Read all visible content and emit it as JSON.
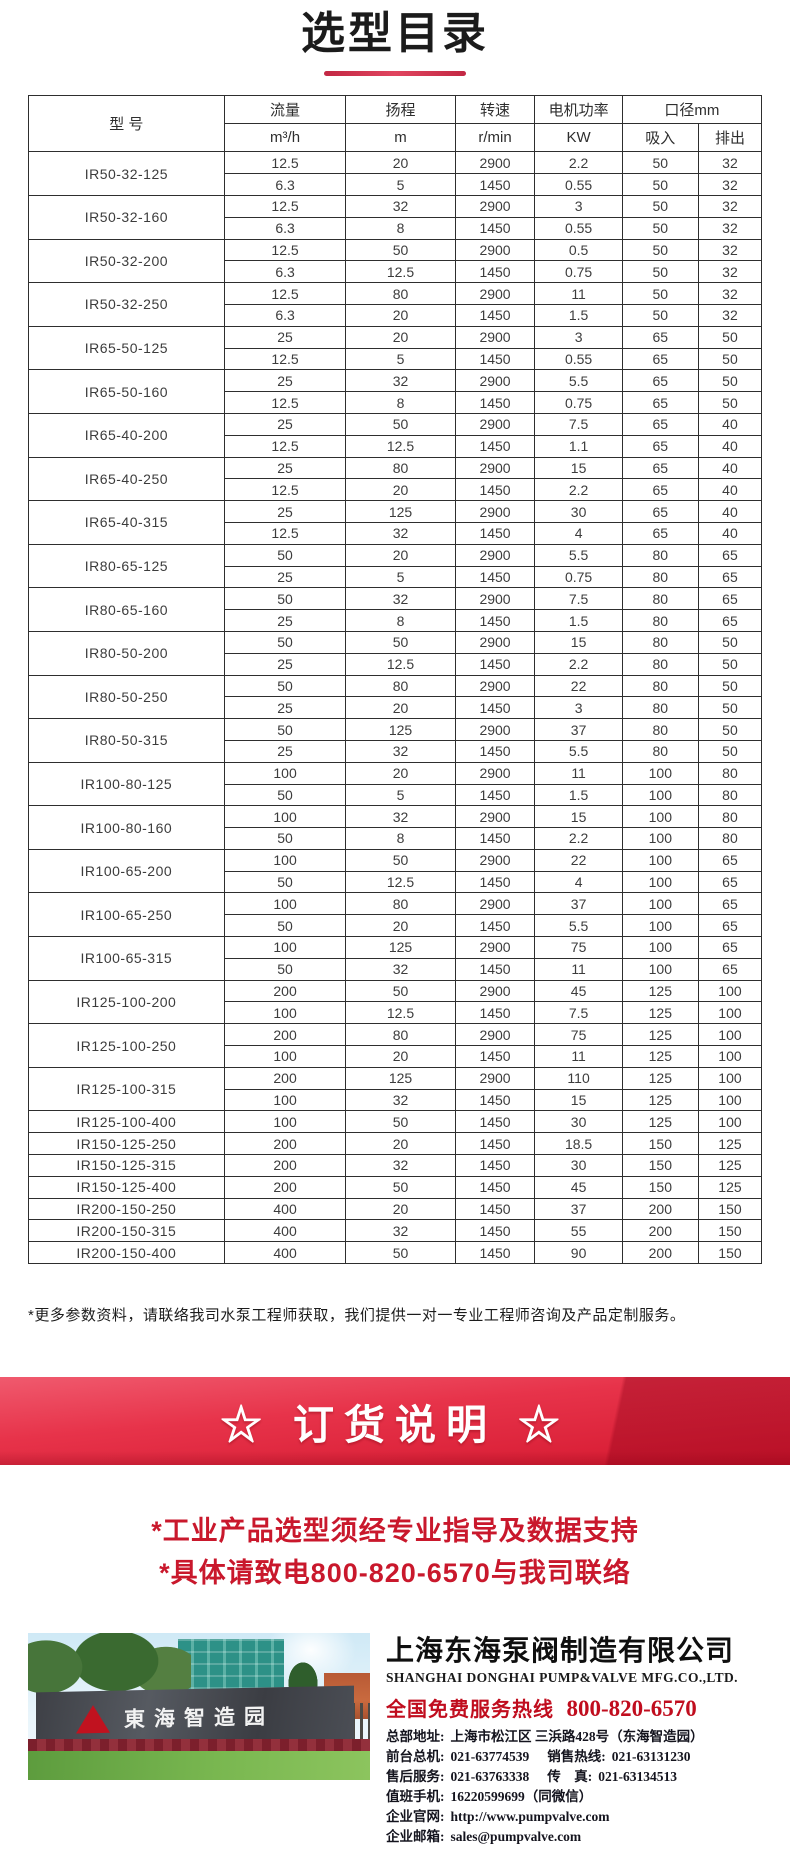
{
  "page_title": "选型目录",
  "colors": {
    "accent_red": "#d51930",
    "underline_red": "#d3304c",
    "notice_red": "#c9182c",
    "hotline_red": "#c00d1e"
  },
  "table": {
    "headers": {
      "model": "型 号",
      "flow": "流量",
      "flow_unit": "m³/h",
      "head": "扬程",
      "head_unit": "m",
      "speed": "转速",
      "speed_unit": "r/min",
      "power": "电机功率",
      "power_unit": "KW",
      "diameter": "口径mm",
      "suction": "吸入",
      "discharge": "排出"
    },
    "models": [
      {
        "model": "IR50-32-125",
        "rows": [
          [
            "12.5",
            "20",
            "2900",
            "2.2",
            "50",
            "32"
          ],
          [
            "6.3",
            "5",
            "1450",
            "0.55",
            "50",
            "32"
          ]
        ]
      },
      {
        "model": "IR50-32-160",
        "rows": [
          [
            "12.5",
            "32",
            "2900",
            "3",
            "50",
            "32"
          ],
          [
            "6.3",
            "8",
            "1450",
            "0.55",
            "50",
            "32"
          ]
        ]
      },
      {
        "model": "IR50-32-200",
        "rows": [
          [
            "12.5",
            "50",
            "2900",
            "0.5",
            "50",
            "32"
          ],
          [
            "6.3",
            "12.5",
            "1450",
            "0.75",
            "50",
            "32"
          ]
        ]
      },
      {
        "model": "IR50-32-250",
        "rows": [
          [
            "12.5",
            "80",
            "2900",
            "11",
            "50",
            "32"
          ],
          [
            "6.3",
            "20",
            "1450",
            "1.5",
            "50",
            "32"
          ]
        ]
      },
      {
        "model": "IR65-50-125",
        "rows": [
          [
            "25",
            "20",
            "2900",
            "3",
            "65",
            "50"
          ],
          [
            "12.5",
            "5",
            "1450",
            "0.55",
            "65",
            "50"
          ]
        ]
      },
      {
        "model": "IR65-50-160",
        "rows": [
          [
            "25",
            "32",
            "2900",
            "5.5",
            "65",
            "50"
          ],
          [
            "12.5",
            "8",
            "1450",
            "0.75",
            "65",
            "50"
          ]
        ]
      },
      {
        "model": "IR65-40-200",
        "rows": [
          [
            "25",
            "50",
            "2900",
            "7.5",
            "65",
            "40"
          ],
          [
            "12.5",
            "12.5",
            "1450",
            "1.1",
            "65",
            "40"
          ]
        ]
      },
      {
        "model": "IR65-40-250",
        "rows": [
          [
            "25",
            "80",
            "2900",
            "15",
            "65",
            "40"
          ],
          [
            "12.5",
            "20",
            "1450",
            "2.2",
            "65",
            "40"
          ]
        ]
      },
      {
        "model": "IR65-40-315",
        "rows": [
          [
            "25",
            "125",
            "2900",
            "30",
            "65",
            "40"
          ],
          [
            "12.5",
            "32",
            "1450",
            "4",
            "65",
            "40"
          ]
        ]
      },
      {
        "model": "IR80-65-125",
        "rows": [
          [
            "50",
            "20",
            "2900",
            "5.5",
            "80",
            "65"
          ],
          [
            "25",
            "5",
            "1450",
            "0.75",
            "80",
            "65"
          ]
        ]
      },
      {
        "model": "IR80-65-160",
        "rows": [
          [
            "50",
            "32",
            "2900",
            "7.5",
            "80",
            "65"
          ],
          [
            "25",
            "8",
            "1450",
            "1.5",
            "80",
            "65"
          ]
        ]
      },
      {
        "model": "IR80-50-200",
        "rows": [
          [
            "50",
            "50",
            "2900",
            "15",
            "80",
            "50"
          ],
          [
            "25",
            "12.5",
            "1450",
            "2.2",
            "80",
            "50"
          ]
        ]
      },
      {
        "model": "IR80-50-250",
        "rows": [
          [
            "50",
            "80",
            "2900",
            "22",
            "80",
            "50"
          ],
          [
            "25",
            "20",
            "1450",
            "3",
            "80",
            "50"
          ]
        ]
      },
      {
        "model": "IR80-50-315",
        "rows": [
          [
            "50",
            "125",
            "2900",
            "37",
            "80",
            "50"
          ],
          [
            "25",
            "32",
            "1450",
            "5.5",
            "80",
            "50"
          ]
        ]
      },
      {
        "model": "IR100-80-125",
        "rows": [
          [
            "100",
            "20",
            "2900",
            "11",
            "100",
            "80"
          ],
          [
            "50",
            "5",
            "1450",
            "1.5",
            "100",
            "80"
          ]
        ]
      },
      {
        "model": "IR100-80-160",
        "rows": [
          [
            "100",
            "32",
            "2900",
            "15",
            "100",
            "80"
          ],
          [
            "50",
            "8",
            "1450",
            "2.2",
            "100",
            "80"
          ]
        ]
      },
      {
        "model": "IR100-65-200",
        "rows": [
          [
            "100",
            "50",
            "2900",
            "22",
            "100",
            "65"
          ],
          [
            "50",
            "12.5",
            "1450",
            "4",
            "100",
            "65"
          ]
        ]
      },
      {
        "model": "IR100-65-250",
        "rows": [
          [
            "100",
            "80",
            "2900",
            "37",
            "100",
            "65"
          ],
          [
            "50",
            "20",
            "1450",
            "5.5",
            "100",
            "65"
          ]
        ]
      },
      {
        "model": "IR100-65-315",
        "rows": [
          [
            "100",
            "125",
            "2900",
            "75",
            "100",
            "65"
          ],
          [
            "50",
            "32",
            "1450",
            "11",
            "100",
            "65"
          ]
        ]
      },
      {
        "model": "IR125-100-200",
        "rows": [
          [
            "200",
            "50",
            "2900",
            "45",
            "125",
            "100"
          ],
          [
            "100",
            "12.5",
            "1450",
            "7.5",
            "125",
            "100"
          ]
        ]
      },
      {
        "model": "IR125-100-250",
        "rows": [
          [
            "200",
            "80",
            "2900",
            "75",
            "125",
            "100"
          ],
          [
            "100",
            "20",
            "1450",
            "11",
            "125",
            "100"
          ]
        ]
      },
      {
        "model": "IR125-100-315",
        "rows": [
          [
            "200",
            "125",
            "2900",
            "110",
            "125",
            "100"
          ],
          [
            "100",
            "32",
            "1450",
            "15",
            "125",
            "100"
          ]
        ]
      },
      {
        "model": "IR125-100-400",
        "rows": [
          [
            "100",
            "50",
            "1450",
            "30",
            "125",
            "100"
          ]
        ]
      },
      {
        "model": "IR150-125-250",
        "rows": [
          [
            "200",
            "20",
            "1450",
            "18.5",
            "150",
            "125"
          ]
        ]
      },
      {
        "model": "IR150-125-315",
        "rows": [
          [
            "200",
            "32",
            "1450",
            "30",
            "150",
            "125"
          ]
        ]
      },
      {
        "model": "IR150-125-400",
        "rows": [
          [
            "200",
            "50",
            "1450",
            "45",
            "150",
            "125"
          ]
        ]
      },
      {
        "model": "IR200-150-250",
        "rows": [
          [
            "400",
            "20",
            "1450",
            "37",
            "200",
            "150"
          ]
        ]
      },
      {
        "model": "IR200-150-315",
        "rows": [
          [
            "400",
            "32",
            "1450",
            "55",
            "200",
            "150"
          ]
        ]
      },
      {
        "model": "IR200-150-400",
        "rows": [
          [
            "400",
            "50",
            "1450",
            "90",
            "200",
            "150"
          ]
        ]
      }
    ]
  },
  "footnote": "*更多参数资料，请联络我司水泵工程师获取，我们提供一对一专业工程师咨询及产品定制服务。",
  "order_banner": {
    "label": "☆ 订货说明 ☆"
  },
  "notice": {
    "line1": "*工业产品选型须经专业指导及数据支持",
    "line2": "*具体请致电800-820-6570与我司联络"
  },
  "footer": {
    "photo_sign": "東海智造园",
    "company_cn": "上海东海泵阀制造有限公司",
    "company_en": "SHANGHAI DONGHAI PUMP&VALVE MFG.CO.,LTD.",
    "hotline_label": "全国免费服务热线",
    "hotline_number": "800-820-6570",
    "contacts": [
      {
        "label": "总部地址:",
        "value": "上海市松江区 三浜路428号（东海智造园）"
      },
      {
        "label": "前台总机:",
        "value": "021-63774539",
        "label2": "销售热线:",
        "value2": "021-63131230"
      },
      {
        "label": "售后服务:",
        "value": "021-63763338",
        "label2": "传　真:",
        "value2": "021-63134513"
      },
      {
        "label": "值班手机:",
        "value": "16220599699（同微信）"
      },
      {
        "label": "企业官网:",
        "value": "http://www.pumpvalve.com"
      },
      {
        "label": "企业邮箱:",
        "value": "sales@pumpvalve.com"
      }
    ]
  }
}
